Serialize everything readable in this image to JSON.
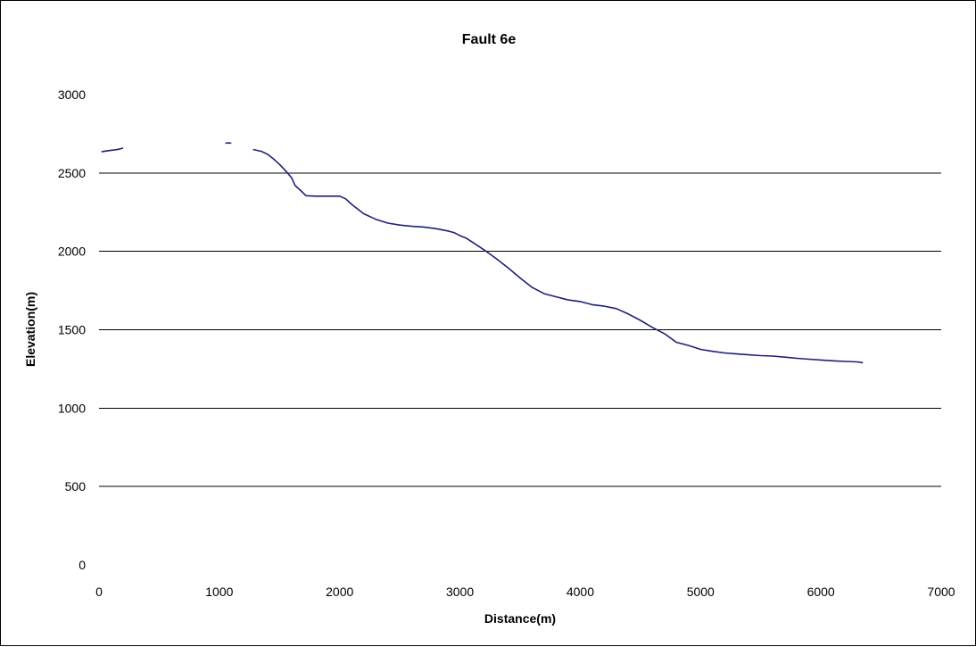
{
  "chart_data": {
    "type": "line",
    "title": "Fault 6e",
    "xlabel": "Distance(m)",
    "ylabel": "Elevation(m)",
    "xlim": [
      0,
      7000
    ],
    "ylim": [
      0,
      3000
    ],
    "x_ticks": [
      0,
      1000,
      2000,
      3000,
      4000,
      5000,
      6000,
      7000
    ],
    "y_ticks": [
      0,
      500,
      1000,
      1500,
      2000,
      2500,
      3000
    ],
    "grid": "horizontal",
    "legend": "none",
    "line_color": "#1f1f7a",
    "series": [
      {
        "x": [
          20,
          60,
          100,
          140,
          170,
          200
        ],
        "y": [
          2635,
          2640,
          2645,
          2648,
          2652,
          2660
        ]
      },
      {
        "x": [
          1050,
          1080,
          1100
        ],
        "y": [
          2690,
          2692,
          2690
        ]
      },
      {
        "x": [
          1280,
          1350,
          1400,
          1450,
          1500,
          1550,
          1600,
          1630,
          1680,
          1720,
          1800,
          1900,
          2000,
          2050,
          2100,
          2150,
          2200,
          2300,
          2400,
          2500,
          2600,
          2700,
          2800,
          2900,
          2950,
          3000,
          3050,
          3100,
          3200,
          3300,
          3400,
          3500,
          3600,
          3700,
          3800,
          3900,
          4000,
          4100,
          4200,
          4300,
          4400,
          4500,
          4600,
          4700,
          4800,
          4900,
          5000,
          5100,
          5200,
          5300,
          5400,
          5500,
          5600,
          5700,
          5800,
          5900,
          6000,
          6100,
          6200,
          6300,
          6350
        ],
        "y": [
          2650,
          2638,
          2620,
          2590,
          2555,
          2515,
          2470,
          2420,
          2385,
          2355,
          2352,
          2352,
          2352,
          2335,
          2300,
          2270,
          2240,
          2205,
          2180,
          2168,
          2160,
          2155,
          2145,
          2130,
          2120,
          2100,
          2085,
          2060,
          2010,
          1955,
          1895,
          1830,
          1770,
          1730,
          1710,
          1690,
          1680,
          1660,
          1650,
          1635,
          1600,
          1560,
          1515,
          1475,
          1420,
          1400,
          1375,
          1362,
          1352,
          1346,
          1340,
          1335,
          1332,
          1325,
          1318,
          1312,
          1307,
          1302,
          1298,
          1295,
          1290
        ]
      }
    ]
  }
}
